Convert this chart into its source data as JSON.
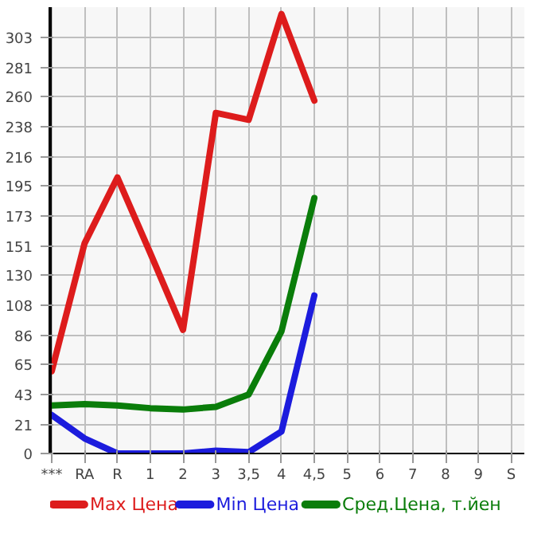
{
  "chart_data": {
    "type": "line",
    "categories": [
      "***",
      "RA",
      "R",
      "1",
      "2",
      "3",
      "3,5",
      "4",
      "4,5",
      "5",
      "6",
      "7",
      "8",
      "9",
      "S"
    ],
    "series": [
      {
        "name": "Max Цена",
        "color": "#dd1c1c",
        "values": [
          60,
          153,
          201,
          146,
          90,
          248,
          243,
          320,
          257,
          null,
          null,
          null,
          null,
          null,
          null
        ]
      },
      {
        "name": "Min Цена",
        "color": "#1c1cdd",
        "values": [
          28,
          11,
          0,
          0,
          0,
          2,
          1,
          16,
          115,
          null,
          null,
          null,
          null,
          null,
          null
        ]
      },
      {
        "name": "Сред.Цена, т.йен",
        "color": "#0a7d0a",
        "values": [
          35,
          36,
          35,
          33,
          32,
          34,
          43,
          89,
          186,
          null,
          null,
          null,
          null,
          null,
          null
        ]
      }
    ],
    "ylim": [
      0,
      325
    ],
    "yticks": [
      0,
      21,
      43,
      65,
      86,
      108,
      130,
      151,
      173,
      195,
      216,
      238,
      260,
      281,
      303
    ],
    "grid": true,
    "legend": "bottom",
    "marker": "none",
    "line_style": "solid"
  }
}
